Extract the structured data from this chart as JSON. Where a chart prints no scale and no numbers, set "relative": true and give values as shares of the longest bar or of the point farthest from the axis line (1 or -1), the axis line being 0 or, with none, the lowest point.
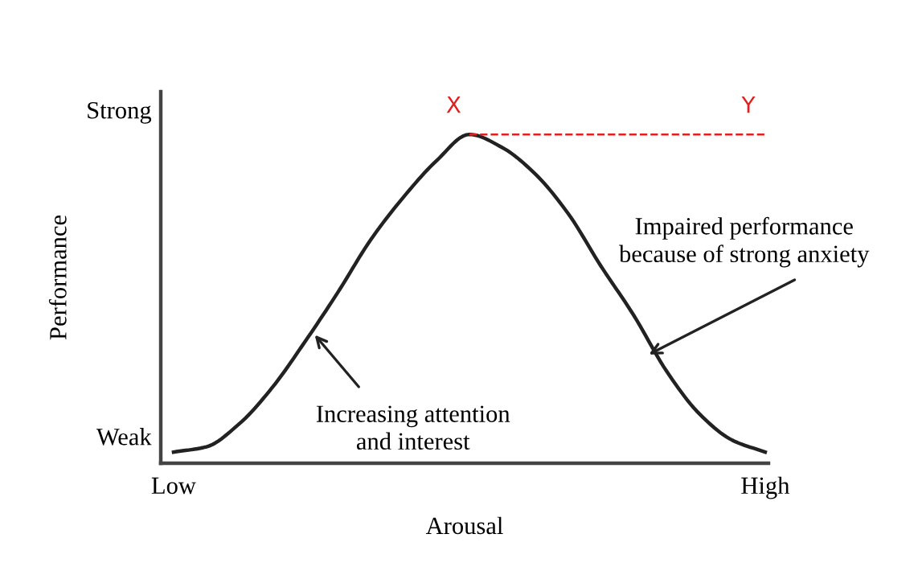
{
  "chart_data": {
    "type": "line",
    "relative": true,
    "xlabel": "Arousal",
    "ylabel": "Performance",
    "categories": [
      "Low",
      null,
      null,
      null,
      null,
      null,
      null,
      null,
      null,
      null,
      null,
      null,
      null,
      null,
      null,
      null,
      null,
      null,
      "High"
    ],
    "series": [
      {
        "color": "#222222",
        "line_style": "solid",
        "values": [
          0.034,
          0.05,
          0.12,
          0.23,
          0.37,
          0.52,
          0.68,
          0.81,
          0.92,
          1.0,
          0.96,
          0.88,
          0.76,
          0.6,
          0.45,
          0.28,
          0.15,
          0.07,
          0.034
        ]
      },
      {
        "color": "#e02020",
        "line_style": "dashed",
        "values": [
          null,
          null,
          null,
          null,
          null,
          null,
          null,
          null,
          null,
          1.0,
          1.0,
          1.0,
          1.0,
          1.0,
          1.0,
          1.0,
          1.0,
          1.0,
          1.0
        ]
      }
    ],
    "annotations": [
      "Strong",
      "Weak",
      "Increasing attention\nand interest",
      "Impaired performance\nbecause of strong anxiety",
      "X",
      "Y"
    ],
    "grid": false,
    "legend": false,
    "marker": "none"
  }
}
